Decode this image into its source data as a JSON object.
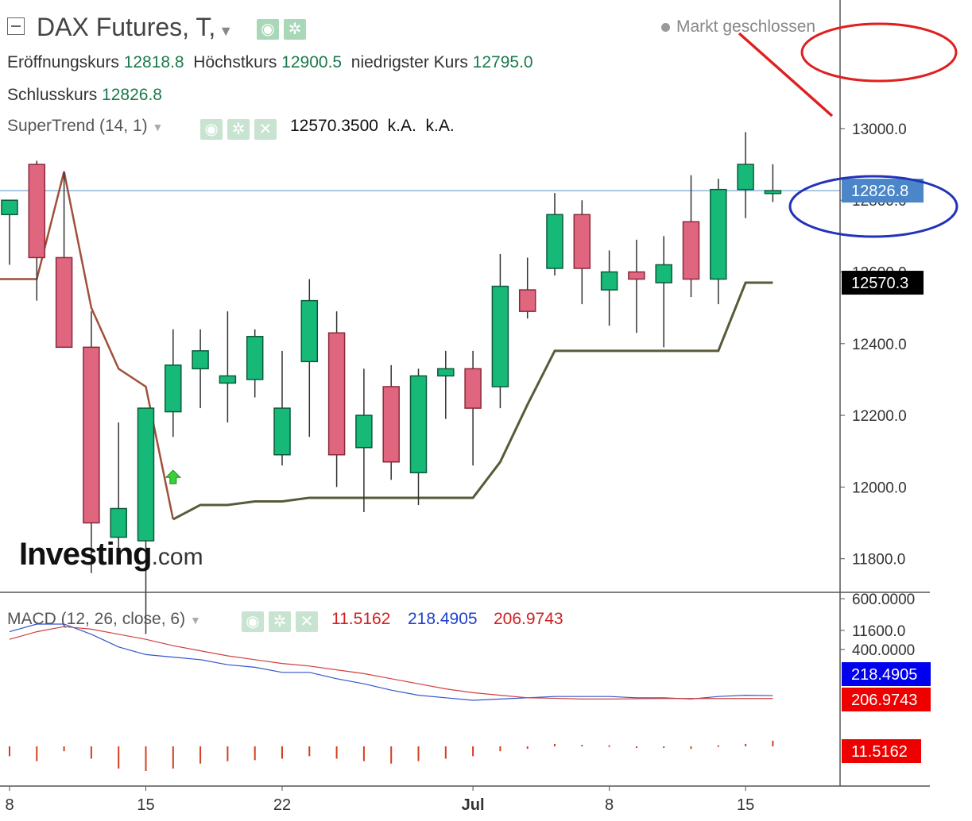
{
  "header": {
    "title": "DAX Futures, T,",
    "open_label": "Eröffnungskurs",
    "open_value": "12818.8",
    "high_label": "Höchstkurs",
    "high_value": "12900.5",
    "low_label": "niedrigster Kurs",
    "low_value": "12795.0",
    "close_label": "Schlusskurs",
    "close_value": "12826.8",
    "market_status": "Markt geschlossen"
  },
  "supertrend": {
    "label": "SuperTrend (14, 1)",
    "value": "12570.3500",
    "na1": "k.A.",
    "na2": "k.A."
  },
  "macd": {
    "label": "MACD (12, 26, close, 6)",
    "hist_value": "11.5162",
    "macd_value": "218.4905",
    "signal_value": "206.9743"
  },
  "logo": {
    "main": "Investing",
    "suffix": ".com"
  },
  "colors": {
    "up": "#17b978",
    "down": "#e06680",
    "supertrend_up": "#5a5a3a",
    "supertrend_down": "#a0503a",
    "macd_line": "#3355cc",
    "signal_line": "#d04040",
    "hist": "#d04020",
    "price_tag": "#4a86c8",
    "st_tag": "#000000",
    "macd_tag": "#0000ee",
    "signal_tag": "#ee0000",
    "annotation_red": "#e02020",
    "annotation_blue": "#2233bb"
  },
  "chart_data": {
    "type": "candlestick",
    "y_ticks": [
      11600,
      11800,
      12000,
      12200,
      12400,
      12600,
      12800,
      13000
    ],
    "y_tick_labels": [
      "11600.0",
      "11800.0",
      "12000.0",
      "12200.0",
      "12400.0",
      "12600.0",
      "12800.0",
      "13000.0"
    ],
    "ylim": [
      11600,
      13000
    ],
    "x_tick_labels": [
      {
        "index": 0,
        "label": "8"
      },
      {
        "index": 5,
        "label": "15"
      },
      {
        "index": 10,
        "label": "22"
      },
      {
        "index": 17,
        "label": "Jul"
      },
      {
        "index": 22,
        "label": "8"
      },
      {
        "index": 27,
        "label": "15"
      }
    ],
    "candles": [
      {
        "o": 12760,
        "h": 12790,
        "l": 12620,
        "c": 12800
      },
      {
        "o": 12900,
        "h": 12910,
        "l": 12520,
        "c": 12640
      },
      {
        "o": 12640,
        "h": 12880,
        "l": 12390,
        "c": 12390
      },
      {
        "o": 12390,
        "h": 12490,
        "l": 11760,
        "c": 11900
      },
      {
        "o": 11860,
        "h": 12180,
        "l": 11800,
        "c": 11940
      },
      {
        "o": 11850,
        "h": 12220,
        "l": 11590,
        "c": 12220
      },
      {
        "o": 12210,
        "h": 12440,
        "l": 12140,
        "c": 12340
      },
      {
        "o": 12330,
        "h": 12440,
        "l": 12220,
        "c": 12380
      },
      {
        "o": 12290,
        "h": 12490,
        "l": 12180,
        "c": 12310
      },
      {
        "o": 12300,
        "h": 12440,
        "l": 12250,
        "c": 12420
      },
      {
        "o": 12090,
        "h": 12380,
        "l": 12060,
        "c": 12220
      },
      {
        "o": 12350,
        "h": 12580,
        "l": 12140,
        "c": 12520
      },
      {
        "o": 12430,
        "h": 12490,
        "l": 12000,
        "c": 12090
      },
      {
        "o": 12110,
        "h": 12330,
        "l": 11930,
        "c": 12200
      },
      {
        "o": 12280,
        "h": 12340,
        "l": 12020,
        "c": 12070
      },
      {
        "o": 12040,
        "h": 12330,
        "l": 11950,
        "c": 12310
      },
      {
        "o": 12310,
        "h": 12380,
        "l": 12190,
        "c": 12330
      },
      {
        "o": 12330,
        "h": 12380,
        "l": 12060,
        "c": 12220
      },
      {
        "o": 12280,
        "h": 12650,
        "l": 12220,
        "c": 12560
      },
      {
        "o": 12550,
        "h": 12640,
        "l": 12470,
        "c": 12490
      },
      {
        "o": 12610,
        "h": 12820,
        "l": 12590,
        "c": 12760
      },
      {
        "o": 12760,
        "h": 12800,
        "l": 12510,
        "c": 12610
      },
      {
        "o": 12550,
        "h": 12660,
        "l": 12450,
        "c": 12600
      },
      {
        "o": 12600,
        "h": 12690,
        "l": 12430,
        "c": 12580
      },
      {
        "o": 12570,
        "h": 12700,
        "l": 12390,
        "c": 12620
      },
      {
        "o": 12740,
        "h": 12870,
        "l": 12530,
        "c": 12580
      },
      {
        "o": 12580,
        "h": 12860,
        "l": 12510,
        "c": 12830
      },
      {
        "o": 12830,
        "h": 12990,
        "l": 12750,
        "c": 12900
      },
      {
        "o": 12818.8,
        "h": 12900.5,
        "l": 12795.0,
        "c": 12826.8
      }
    ],
    "supertrend": [
      12580,
      12580,
      12880,
      12500,
      12330,
      12280,
      11910,
      11950,
      11950,
      11960,
      11960,
      11970,
      11970,
      11970,
      11970,
      11970,
      11970,
      11970,
      12070,
      12230,
      12380,
      12380,
      12380,
      12380,
      12380,
      12380,
      12380,
      12570,
      12570
    ],
    "supertrend_down_until_index": 6,
    "signal_arrow_index": 6,
    "current_price": 12826.8,
    "current_price_label": "12826.8",
    "supertrend_label": "12570.3",
    "macd_panel": {
      "y_ticks": [
        400,
        600
      ],
      "y_tick_labels": [
        "400.0000",
        "600.0000"
      ],
      "macd": [
        470,
        500,
        500,
        460,
        410,
        380,
        370,
        360,
        340,
        330,
        310,
        310,
        285,
        265,
        240,
        220,
        210,
        200,
        205,
        210,
        215,
        215,
        215,
        210,
        210,
        205,
        215,
        220,
        218.4905
      ],
      "signal": [
        440,
        470,
        490,
        480,
        460,
        440,
        415,
        395,
        375,
        360,
        345,
        335,
        320,
        305,
        285,
        265,
        245,
        230,
        220,
        210,
        208,
        205,
        205,
        206,
        207,
        207,
        207,
        207,
        206.9743
      ],
      "histogram": [
        -20,
        -30,
        -10,
        -25,
        -45,
        -50,
        -45,
        -35,
        -30,
        -28,
        -25,
        -20,
        -25,
        -30,
        -35,
        -30,
        -25,
        -20,
        -10,
        -5,
        5,
        3,
        2,
        -3,
        -2,
        -5,
        2,
        5,
        11.5162
      ]
    }
  }
}
